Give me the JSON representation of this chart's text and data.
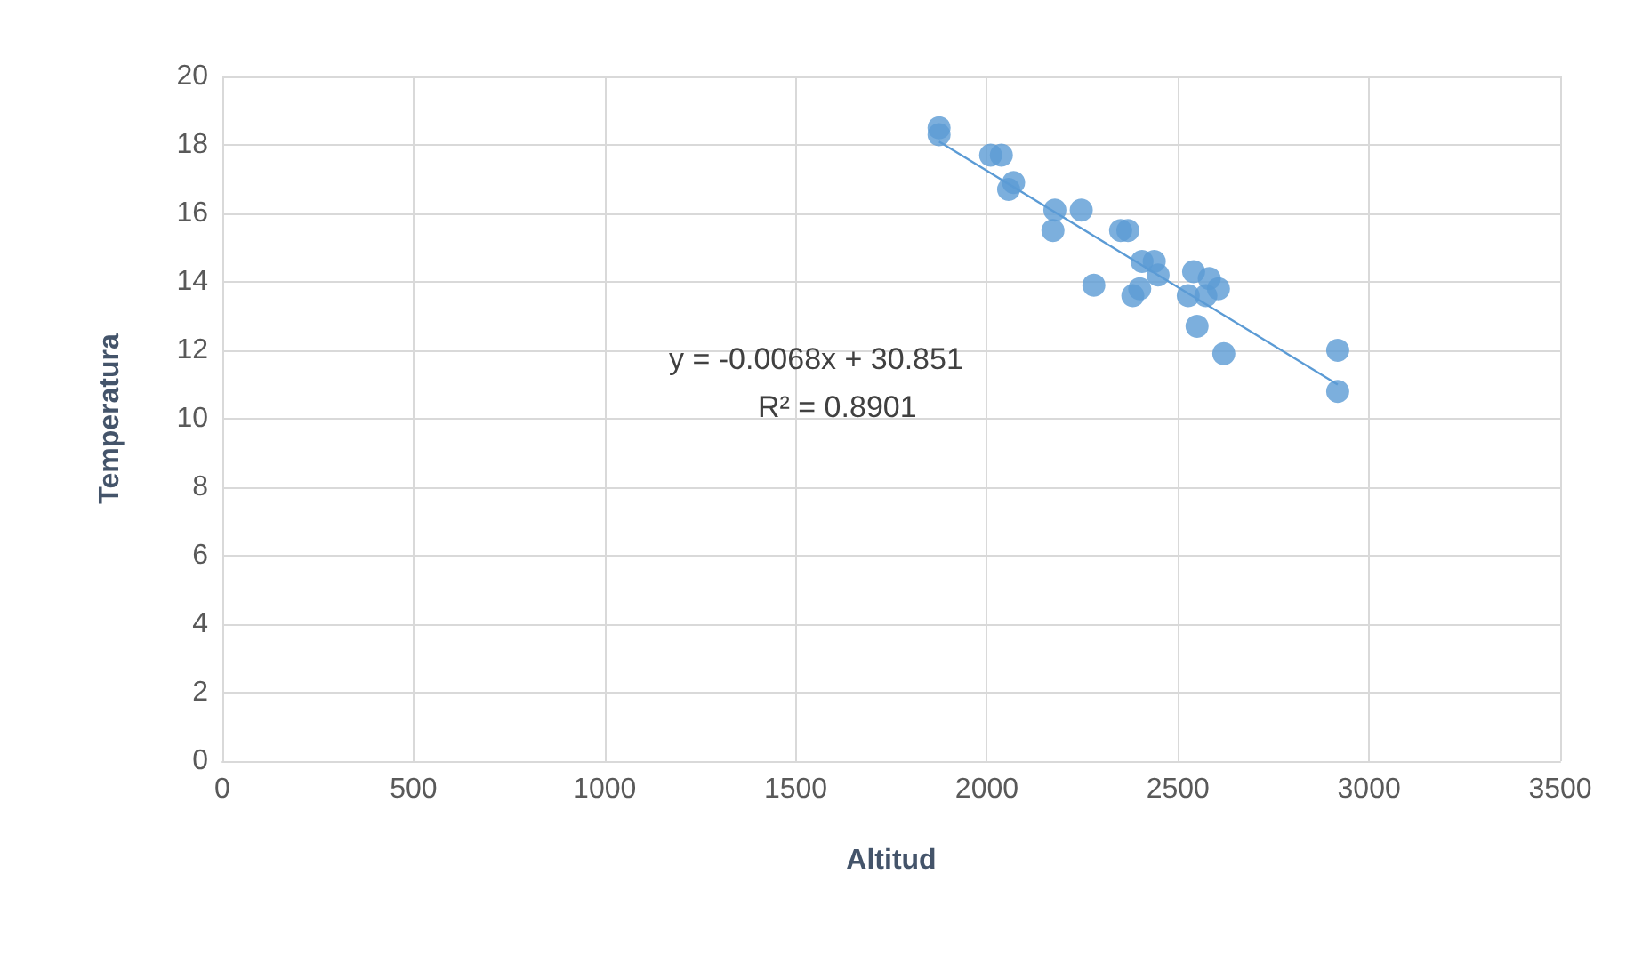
{
  "chart_data": {
    "type": "scatter",
    "xlabel": "Altitud",
    "ylabel": "Temperatura",
    "xlim": [
      0,
      3500
    ],
    "xticks": [
      0,
      500,
      1000,
      1500,
      2000,
      2500,
      3000,
      3500
    ],
    "ylim": [
      0,
      20
    ],
    "yticks": [
      0,
      2,
      4,
      6,
      8,
      10,
      12,
      14,
      16,
      18,
      20
    ],
    "grid": true,
    "annotations": [
      "y = -0.0068x + 30.851",
      "R² = 0.8901"
    ],
    "series": [
      {
        "marker": "circle",
        "color": "#5b9bd5",
        "x": [
          1875,
          1875,
          2010,
          2038,
          2057,
          2070,
          2178,
          2173,
          2247,
          2350,
          2369,
          2406,
          2438,
          2448,
          2280,
          2382,
          2400,
          2541,
          2582,
          2606,
          2527,
          2573,
          2550,
          2620,
          2918,
          2918
        ],
        "values": [
          18.5,
          18.3,
          17.7,
          17.7,
          16.7,
          16.9,
          16.1,
          15.5,
          16.1,
          15.5,
          15.5,
          14.6,
          14.6,
          14.2,
          13.9,
          13.6,
          13.8,
          14.3,
          14.1,
          13.8,
          13.6,
          13.6,
          12.7,
          11.9,
          12.0,
          10.8
        ]
      },
      {
        "type": "line",
        "marker": "none",
        "color": "#5b9bd5",
        "x": [
          1875,
          2918
        ],
        "values": [
          18.1,
          11.0
        ]
      }
    ]
  }
}
